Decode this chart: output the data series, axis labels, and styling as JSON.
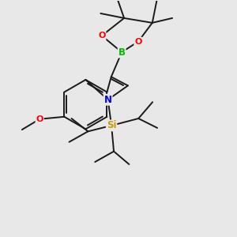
{
  "background_color": "#e8e8e8",
  "bond_color": "#1a1a1a",
  "atom_colors": {
    "B": "#00bb00",
    "O": "#ff0000",
    "N": "#0000ff",
    "Si": "#cc9900",
    "C": "#1a1a1a"
  },
  "figsize": [
    3.0,
    3.0
  ],
  "dpi": 100
}
